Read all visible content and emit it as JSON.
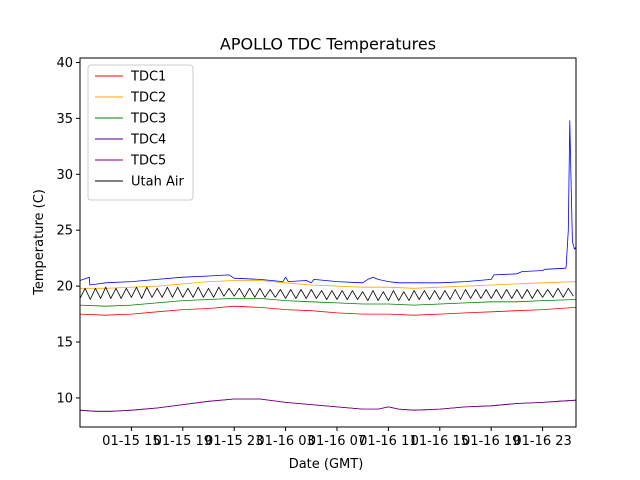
{
  "chart_data": {
    "type": "line",
    "title": "APOLLO TDC Temperatures",
    "xlabel": "Date (GMT)",
    "ylabel": "Temperature (C)",
    "xlim": [
      0,
      9.65
    ],
    "ylim": [
      7.4,
      40.4
    ],
    "xticks": [
      {
        "pos": 1,
        "label": "01-15 15"
      },
      {
        "pos": 2,
        "label": "01-15 19"
      },
      {
        "pos": 3,
        "label": "01-15 23"
      },
      {
        "pos": 4,
        "label": "01-16 03"
      },
      {
        "pos": 5,
        "label": "01-16 07"
      },
      {
        "pos": 6,
        "label": "01-16 11"
      },
      {
        "pos": 7,
        "label": "01-16 15"
      },
      {
        "pos": 8,
        "label": "01-16 19"
      },
      {
        "pos": 9,
        "label": "01-16 23"
      }
    ],
    "yticks": [
      10,
      15,
      20,
      25,
      30,
      35,
      40
    ],
    "legend_position": "top-left",
    "series": [
      {
        "name": "TDC1",
        "color": "#ff0000",
        "x": [
          0,
          0.5,
          1,
          1.5,
          2,
          2.5,
          3,
          3.5,
          4,
          4.5,
          5,
          5.5,
          6,
          6.5,
          7,
          7.5,
          8,
          8.5,
          9,
          9.65
        ],
        "y": [
          17.5,
          17.4,
          17.5,
          17.7,
          17.9,
          18.0,
          18.2,
          18.1,
          17.9,
          17.8,
          17.6,
          17.5,
          17.5,
          17.4,
          17.5,
          17.6,
          17.7,
          17.8,
          17.9,
          18.1
        ]
      },
      {
        "name": "TDC2",
        "color": "#ffa500",
        "x": [
          0,
          0.5,
          1,
          1.5,
          2,
          2.5,
          3,
          3.5,
          4,
          4.5,
          5,
          5.5,
          6,
          6.5,
          7,
          7.5,
          8,
          8.5,
          9,
          9.65
        ],
        "y": [
          19.8,
          19.8,
          19.9,
          20.0,
          20.2,
          20.4,
          20.5,
          20.5,
          20.3,
          20.1,
          20.0,
          19.9,
          19.9,
          19.8,
          19.9,
          20.0,
          20.1,
          20.2,
          20.3,
          20.4
        ]
      },
      {
        "name": "TDC3",
        "color": "#008000",
        "x": [
          0,
          0.5,
          1,
          1.5,
          2,
          2.5,
          3,
          3.5,
          4,
          4.5,
          5,
          5.5,
          6,
          6.5,
          7,
          7.5,
          8,
          8.5,
          9,
          9.65
        ],
        "y": [
          18.3,
          18.2,
          18.3,
          18.5,
          18.7,
          18.8,
          18.9,
          18.9,
          18.7,
          18.6,
          18.5,
          18.4,
          18.4,
          18.3,
          18.4,
          18.5,
          18.6,
          18.6,
          18.7,
          18.8
        ]
      },
      {
        "name": "TDC4",
        "color": "#4b0082",
        "x": [
          0,
          0.3,
          0.6,
          1,
          1.5,
          2,
          2.5,
          3,
          3.5,
          4,
          4.5,
          5,
          5.5,
          5.8,
          6,
          6.2,
          6.5,
          7,
          7.5,
          8,
          8.5,
          9,
          9.3,
          9.65
        ],
        "y": [
          8.9,
          8.8,
          8.8,
          8.9,
          9.1,
          9.4,
          9.7,
          9.9,
          9.9,
          9.6,
          9.4,
          9.2,
          9.0,
          9.0,
          9.2,
          9.0,
          8.9,
          9.0,
          9.2,
          9.3,
          9.5,
          9.6,
          9.7,
          9.8
        ]
      },
      {
        "name": "TDC5",
        "color": "#800080",
        "x": [
          0,
          0.3,
          0.6,
          1,
          1.5,
          2,
          2.5,
          3,
          3.5,
          4,
          4.5,
          5,
          5.5,
          5.8,
          6,
          6.2,
          6.5,
          7,
          7.5,
          8,
          8.5,
          9,
          9.3,
          9.65
        ],
        "y": [
          8.9,
          8.8,
          8.8,
          8.9,
          9.1,
          9.4,
          9.7,
          9.9,
          9.9,
          9.6,
          9.4,
          9.2,
          9.0,
          9.0,
          9.2,
          9.0,
          8.9,
          9.0,
          9.2,
          9.3,
          9.5,
          9.6,
          9.7,
          9.8
        ]
      },
      {
        "name": "Utah Air",
        "color": "#000000",
        "x": [
          0,
          0.1,
          0.2,
          0.3,
          0.4,
          0.5,
          0.6,
          0.7,
          0.8,
          0.9,
          1.0,
          1.1,
          1.2,
          1.3,
          1.4,
          1.5,
          1.6,
          1.7,
          1.8,
          1.9,
          2.0,
          2.1,
          2.2,
          2.3,
          2.4,
          2.5,
          2.6,
          2.7,
          2.8,
          2.9,
          3.0,
          3.1,
          3.2,
          3.3,
          3.4,
          3.5,
          3.6,
          3.7,
          3.8,
          3.9,
          4.0,
          4.1,
          4.2,
          4.3,
          4.4,
          4.5,
          4.6,
          4.7,
          4.8,
          4.9,
          5.0,
          5.1,
          5.2,
          5.3,
          5.4,
          5.5,
          5.6,
          5.7,
          5.8,
          5.9,
          6.0,
          6.1,
          6.2,
          6.3,
          6.4,
          6.5,
          6.6,
          6.7,
          6.8,
          6.9,
          7.0,
          7.1,
          7.2,
          7.3,
          7.4,
          7.5,
          7.6,
          7.7,
          7.8,
          7.9,
          8.0,
          8.1,
          8.2,
          8.3,
          8.4,
          8.5,
          8.6,
          8.7,
          8.8,
          8.9,
          9.0,
          9.1,
          9.2,
          9.3,
          9.4,
          9.5,
          9.6
        ],
        "y": [
          18.9,
          19.8,
          18.8,
          19.8,
          18.9,
          19.9,
          18.9,
          19.8,
          18.9,
          19.8,
          19.0,
          19.9,
          18.9,
          19.9,
          19.0,
          19.8,
          19.0,
          19.9,
          19.0,
          19.9,
          19.0,
          19.8,
          19.0,
          19.9,
          19.0,
          19.8,
          19.0,
          19.9,
          19.1,
          19.8,
          19.1,
          19.8,
          19.0,
          19.8,
          19.0,
          19.8,
          19.0,
          19.7,
          19.0,
          19.7,
          18.9,
          19.7,
          18.9,
          19.7,
          18.9,
          19.7,
          18.9,
          19.6,
          18.8,
          19.6,
          18.8,
          19.6,
          18.8,
          19.6,
          18.8,
          19.5,
          18.7,
          19.6,
          18.7,
          19.5,
          18.7,
          19.6,
          18.7,
          19.5,
          18.7,
          19.6,
          18.8,
          19.6,
          18.8,
          19.6,
          18.8,
          19.6,
          18.8,
          19.7,
          18.8,
          19.7,
          18.9,
          19.7,
          18.9,
          19.7,
          18.9,
          19.7,
          18.9,
          19.7,
          18.9,
          19.7,
          18.9,
          19.7,
          18.9,
          19.7,
          19.0,
          19.7,
          19.0,
          19.8,
          19.0,
          19.8,
          19.1
        ]
      },
      {
        "name": "Blue",
        "color": "#0000ff",
        "legend": false,
        "x": [
          0,
          0.18,
          0.19,
          0.35,
          0.5,
          1.0,
          1.5,
          2.0,
          2.5,
          2.9,
          3.0,
          3.05,
          3.5,
          3.95,
          4.0,
          4.05,
          4.4,
          4.5,
          4.55,
          5.0,
          5.5,
          5.6,
          5.7,
          5.8,
          6.0,
          6.2,
          6.5,
          7.0,
          7.5,
          8.0,
          8.05,
          8.5,
          8.6,
          9.0,
          9.05,
          9.45,
          9.46,
          9.5,
          9.53,
          9.55,
          9.58,
          9.62,
          9.65
        ],
        "y": [
          20.5,
          20.8,
          20.1,
          20.2,
          20.3,
          20.4,
          20.6,
          20.8,
          20.9,
          21.0,
          20.7,
          20.7,
          20.6,
          20.4,
          20.8,
          20.4,
          20.5,
          20.3,
          20.6,
          20.4,
          20.3,
          20.6,
          20.8,
          20.6,
          20.4,
          20.3,
          20.3,
          20.3,
          20.4,
          20.6,
          21.0,
          21.1,
          21.3,
          21.4,
          21.5,
          21.6,
          21.8,
          25.0,
          34.8,
          30.0,
          24.0,
          23.3,
          23.5
        ]
      }
    ]
  }
}
